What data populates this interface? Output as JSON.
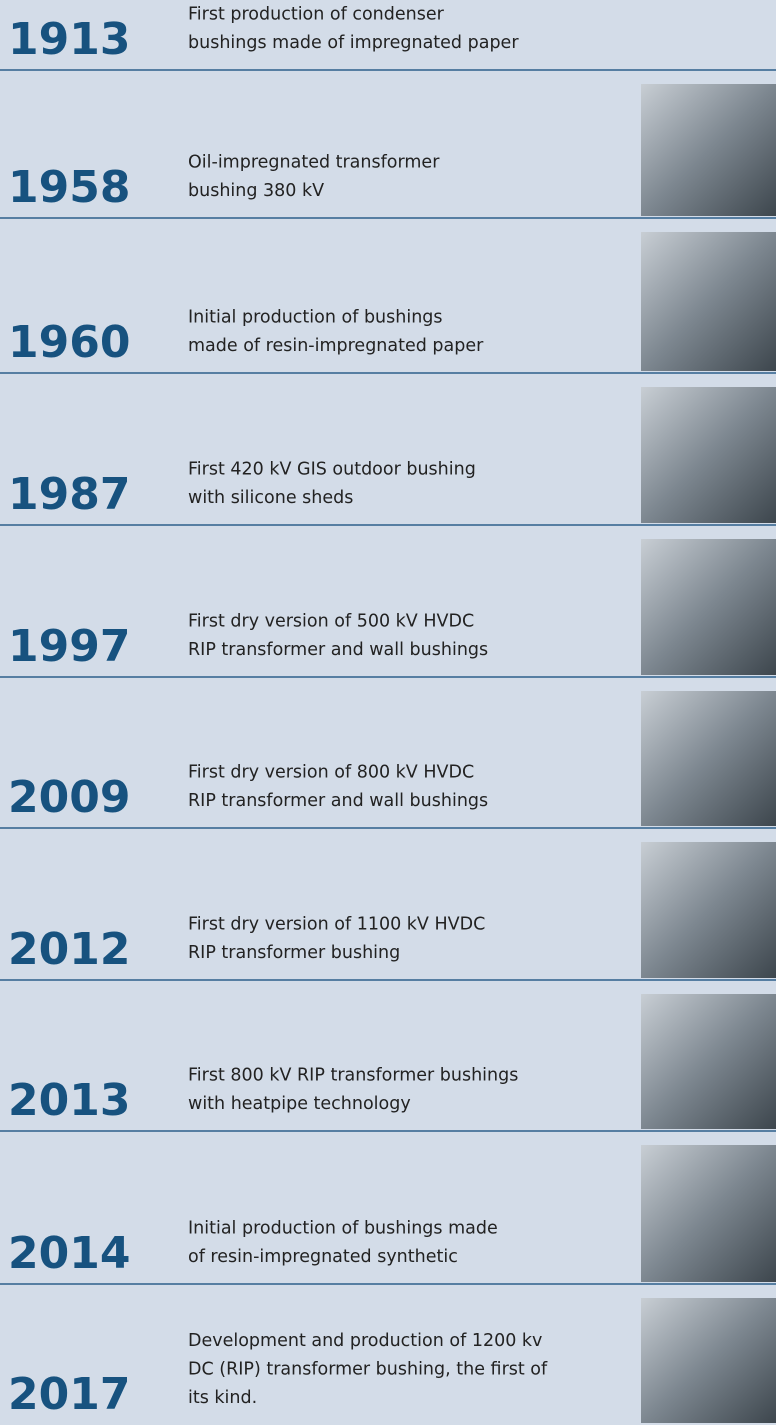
{
  "timeline": {
    "items": [
      {
        "year": "1913",
        "text": [
          "First production of condenser",
          "bushings made of impregnated paper"
        ]
      },
      {
        "year": "1958",
        "text": [
          "Oil-impregnated transformer",
          "bushing 380 kV"
        ]
      },
      {
        "year": "1960",
        "text": [
          "Initial production of bushings",
          "made of resin-impregnated paper"
        ]
      },
      {
        "year": "1987",
        "text": [
          "First 420 kV GIS outdoor bushing",
          "with silicone sheds"
        ]
      },
      {
        "year": "1997",
        "text": [
          "First dry version of 500 kV HVDC",
          "RIP transformer and wall bushings"
        ]
      },
      {
        "year": "2009",
        "text": [
          "First dry version of 800 kV HVDC",
          "RIP transformer and wall bushings"
        ]
      },
      {
        "year": "2012",
        "text": [
          "First dry version of 1100 kV HVDC",
          "RIP transformer bushing"
        ]
      },
      {
        "year": "2013",
        "text": [
          "First 800 kV RIP transformer bushings",
          "with heatpipe technology"
        ]
      },
      {
        "year": "2014",
        "text": [
          "Initial production of bushings made",
          "of resin-impregnated synthetic"
        ]
      },
      {
        "year": "2017",
        "text": [
          "Development and production of 1200 kv",
          "DC (RIP) transformer bushing, the first of",
          "its kind."
        ]
      }
    ]
  }
}
